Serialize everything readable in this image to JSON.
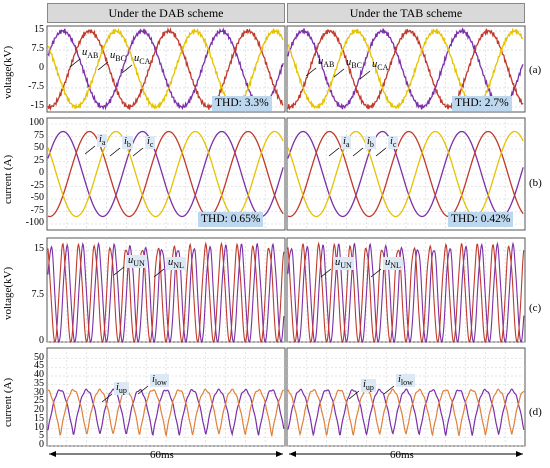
{
  "header": {
    "left_title": "Under the DAB scheme",
    "right_title": "Under the TAB scheme",
    "time_left": "60ms",
    "time_right": "60ms"
  },
  "rows": [
    {
      "label": "(a)",
      "ylabel": "voltage(kV)",
      "thd_left": "THD: 3.3%",
      "thd_right": "THD: 2.7%",
      "ticks": [
        "15",
        "7.5",
        "0",
        "-7.5",
        "-15"
      ],
      "annotations": [
        {
          "main": "u",
          "sub": "AB"
        },
        {
          "main": "u",
          "sub": "BC"
        },
        {
          "main": "u",
          "sub": "CA"
        }
      ]
    },
    {
      "label": "(b)",
      "ylabel": "current (A)",
      "thd_left": "THD: 0.65%",
      "thd_right": "THD: 0.42%",
      "ticks": [
        "100",
        "75",
        "50",
        "25",
        "0",
        "-25",
        "-50",
        "-75",
        "-100"
      ],
      "annotations": [
        {
          "main": "i",
          "sub": "a"
        },
        {
          "main": "i",
          "sub": "b"
        },
        {
          "main": "i",
          "sub": "c"
        }
      ]
    },
    {
      "label": "(c)",
      "ylabel": "voltage(kV)",
      "ticks": [
        "15",
        "7.5",
        "0"
      ],
      "annotations": [
        {
          "main": "u",
          "sub": "UN"
        },
        {
          "main": "u",
          "sub": "NL"
        }
      ]
    },
    {
      "label": "(d)",
      "ylabel": "current (A)",
      "ticks": [
        "50",
        "45",
        "40",
        "35",
        "30",
        "25",
        "20",
        "15",
        "10",
        "5",
        "0"
      ],
      "annotations": [
        {
          "main": "i",
          "sub": "up"
        },
        {
          "main": "i",
          "sub": "low"
        }
      ]
    }
  ],
  "chart_data": [
    {
      "type": "line",
      "panel": "(a) DAB",
      "ylabel": "voltage(kV)",
      "ylim": [
        -15,
        15
      ],
      "series": [
        {
          "name": "uAB",
          "amplitude": 15,
          "phase_deg": 0
        },
        {
          "name": "uBC",
          "amplitude": 15,
          "phase_deg": -120
        },
        {
          "name": "uCA",
          "amplitude": 15,
          "phase_deg": 120
        }
      ],
      "thd": "3.3%",
      "duration": "60ms"
    },
    {
      "type": "line",
      "panel": "(a) TAB",
      "ylim": [
        -15,
        15
      ],
      "series": [
        {
          "name": "uAB",
          "amplitude": 15
        },
        {
          "name": "uBC",
          "amplitude": 15
        },
        {
          "name": "uCA",
          "amplitude": 15
        }
      ],
      "thd": "2.7%"
    },
    {
      "type": "line",
      "panel": "(b) DAB",
      "ylabel": "current (A)",
      "ylim": [
        -100,
        100
      ],
      "series": [
        {
          "name": "ia",
          "amplitude": 85
        },
        {
          "name": "ib",
          "amplitude": 85
        },
        {
          "name": "ic",
          "amplitude": 85
        }
      ],
      "thd": "0.65%"
    },
    {
      "type": "line",
      "panel": "(b) TAB",
      "ylim": [
        -100,
        100
      ],
      "series": [
        {
          "name": "ia",
          "amplitude": 85
        },
        {
          "name": "ib",
          "amplitude": 85
        },
        {
          "name": "ic",
          "amplitude": 85
        }
      ],
      "thd": "0.42%"
    },
    {
      "type": "line",
      "panel": "(c)",
      "ylabel": "voltage(kV)",
      "ylim": [
        0,
        17
      ],
      "series": [
        {
          "name": "uUN",
          "min": 0,
          "max": 15.5
        },
        {
          "name": "uNL",
          "min": 0,
          "max": 15.5
        }
      ]
    },
    {
      "type": "line",
      "panel": "(d)",
      "ylabel": "current (A)",
      "ylim": [
        0,
        55
      ],
      "series": [
        {
          "name": "iup",
          "min": 6,
          "max": 32
        },
        {
          "name": "ilow",
          "min": 6,
          "max": 32
        }
      ]
    }
  ],
  "colors": {
    "phase_a": "#7b2fa8",
    "phase_b": "#c0392b",
    "phase_c": "#e6c200",
    "arm_up": "#7b2fa8",
    "arm_low": "#e0803a",
    "thd_bg": "#bdd7ee",
    "grid": "#d0d0d0"
  }
}
